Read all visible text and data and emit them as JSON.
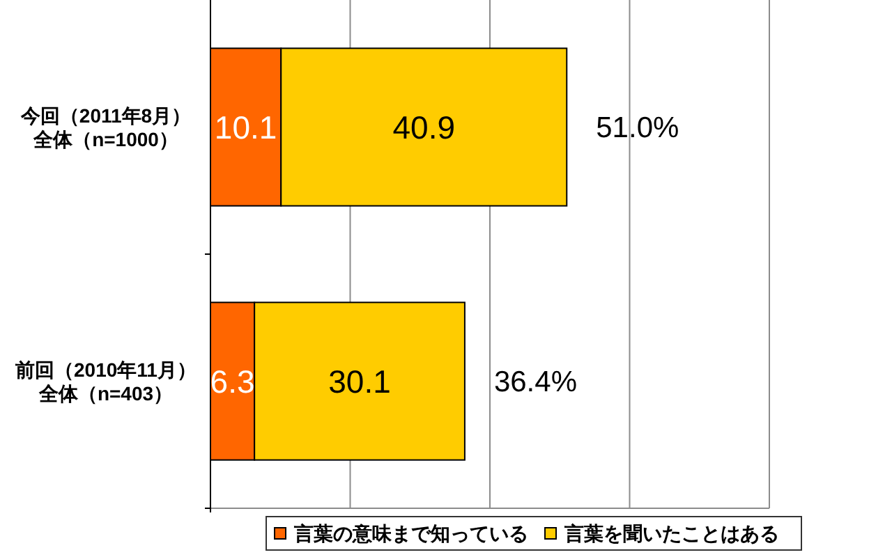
{
  "chart_data": {
    "type": "bar",
    "orientation": "horizontal",
    "stacked": true,
    "categories": [
      "今回（2011年8月）全体（n=1000）",
      "前回（2010年11月）全体（n=403）"
    ],
    "series": [
      {
        "name": "言葉の意味まで知っている",
        "color": "#ff6600",
        "values": [
          10.1,
          6.3
        ]
      },
      {
        "name": "言葉を聞いたことはある",
        "color": "#ffcc00",
        "values": [
          40.9,
          30.1
        ]
      }
    ],
    "xlim": [
      0,
      80
    ],
    "xticks": [
      {
        "value": 0,
        "label": null
      },
      {
        "value": 20,
        "label": null
      },
      {
        "value": 40,
        "label": null
      },
      {
        "value": 60,
        "label": null
      },
      {
        "value": 80,
        "label": null
      }
    ],
    "grid": "x",
    "data_labels": true,
    "totals": [
      "51.0%",
      "36.4%"
    ],
    "legend": "bottom",
    "tick_labels": "y"
  }
}
